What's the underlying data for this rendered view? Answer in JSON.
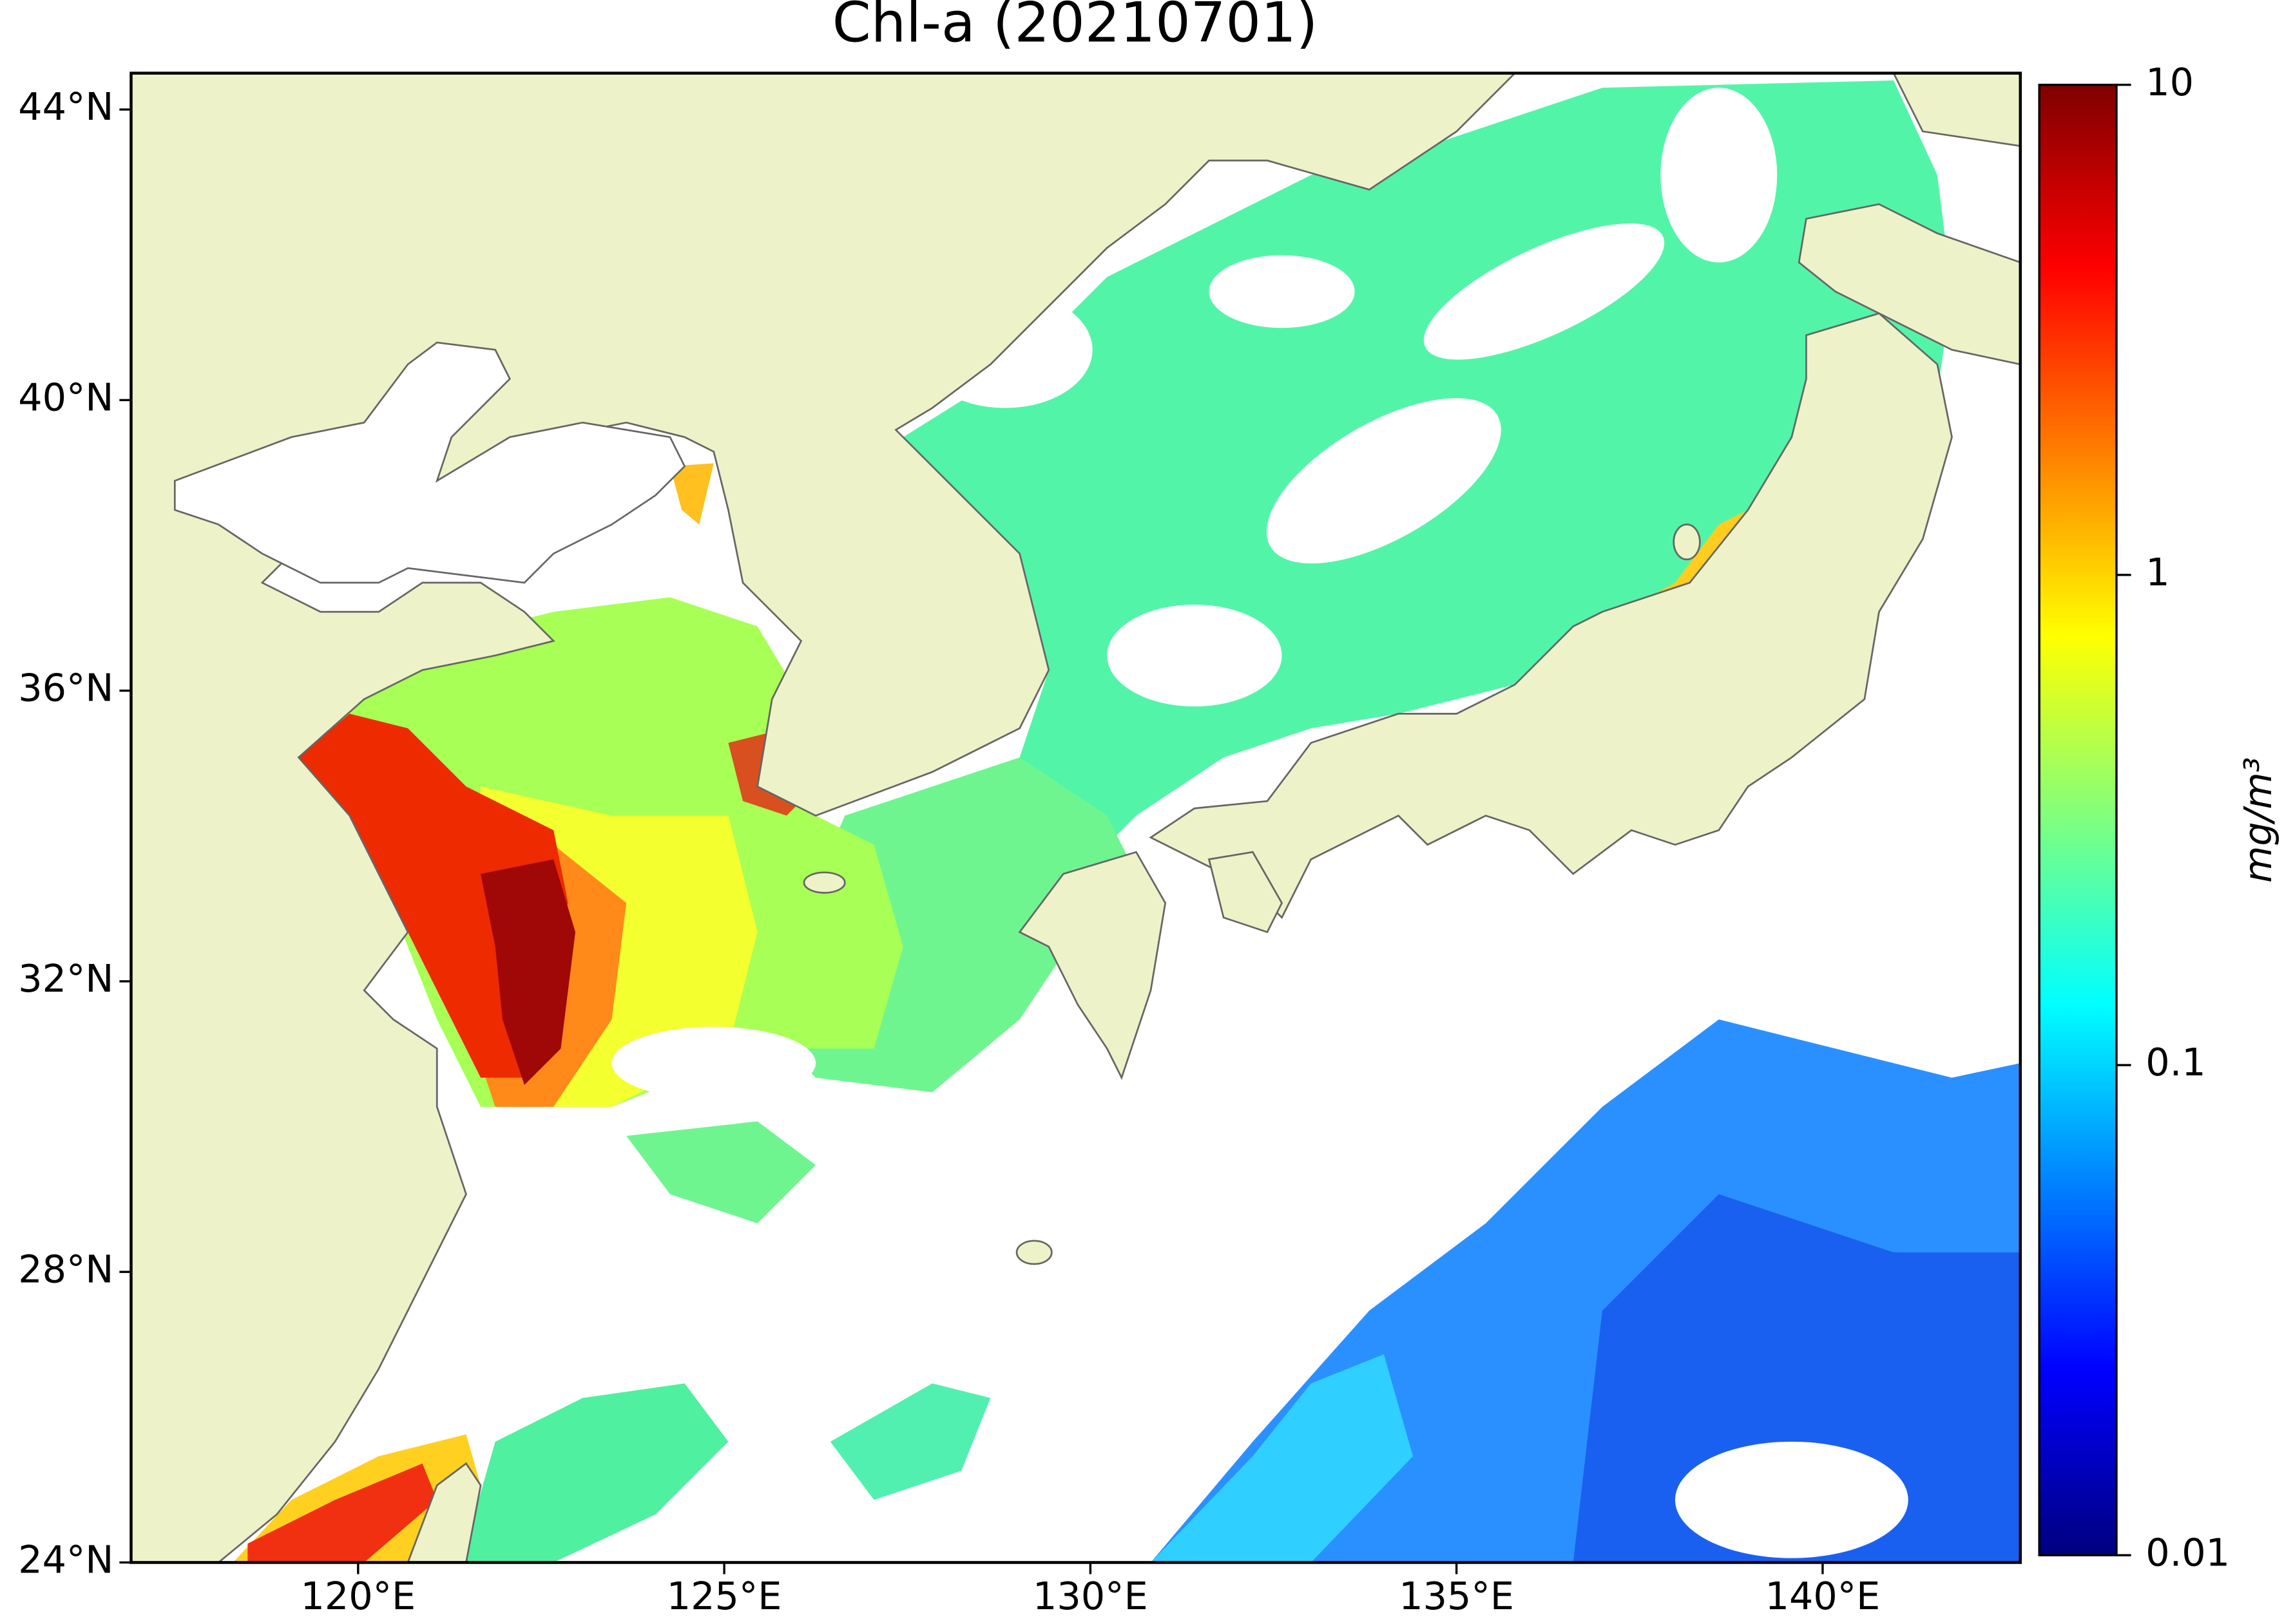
{
  "title": "Chl-a (20210701)",
  "map": {
    "xlim": [
      116.9,
      142.7
    ],
    "ylim": [
      24,
      44.5
    ],
    "xticks": [
      {
        "value": 120,
        "label": "120°E"
      },
      {
        "value": 125,
        "label": "125°E"
      },
      {
        "value": 130,
        "label": "130°E"
      },
      {
        "value": 135,
        "label": "135°E"
      },
      {
        "value": 140,
        "label": "140°E"
      }
    ],
    "yticks": [
      {
        "value": 24,
        "label": "24°N"
      },
      {
        "value": 28,
        "label": "28°N"
      },
      {
        "value": 32,
        "label": "32°N"
      },
      {
        "value": 36,
        "label": "36°N"
      },
      {
        "value": 40,
        "label": "40°N"
      },
      {
        "value": 44,
        "label": "44°N"
      }
    ]
  },
  "colorbar": {
    "label": "mg/m³",
    "scale": "log",
    "lim": [
      0.01,
      10
    ],
    "ticks": [
      0.01,
      0.1,
      1,
      10
    ],
    "colormap": [
      "#00007f",
      "#0000ff",
      "#007fff",
      "#00ffff",
      "#7fff7f",
      "#ffff00",
      "#ff7f00",
      "#ff0000",
      "#7f0000"
    ]
  }
}
